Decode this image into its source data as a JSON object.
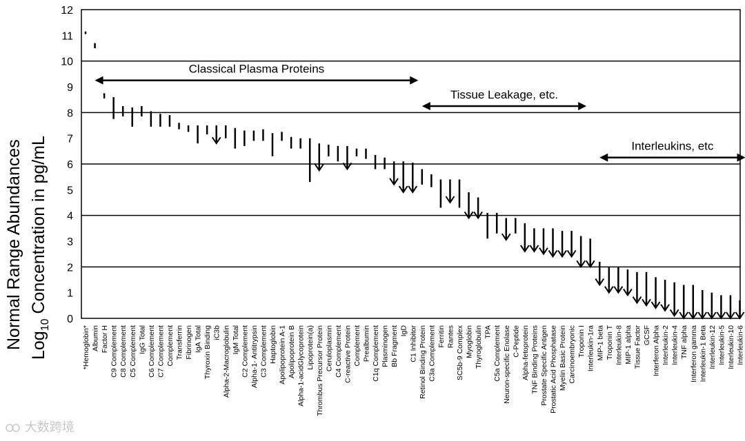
{
  "chart_data": {
    "type": "range",
    "title": "",
    "ylabel": {
      "line1": "Normal Range Abundances",
      "line2_prefix": "Log",
      "line2_sub": "10",
      "line2_suffix": " Concentration in pg/mL"
    },
    "ylim": [
      0,
      12
    ],
    "yticks": [
      0,
      1,
      2,
      3,
      4,
      5,
      6,
      7,
      8,
      9,
      10,
      11,
      12
    ],
    "gridlines": [
      2,
      4,
      6,
      8,
      10
    ],
    "annotations": [
      {
        "label": "Classical Plasma Proteins",
        "x_start": "Albumin",
        "x_end": "C1 Inhibitor",
        "y": 9.25
      },
      {
        "label": "Tissue Leakage, etc.",
        "x_start": "Retinol Binding Protein",
        "x_end": "Troponin I",
        "y": 8.25
      },
      {
        "label": "Interleukins, etc",
        "x_start": "MIP-1 beta",
        "x_end": "Interleukin-6",
        "y": 6.25
      }
    ],
    "series": [
      {
        "name": "*Hemoglobin*",
        "low": 11.05,
        "high": 11.15,
        "arrow": false
      },
      {
        "name": "Albumin",
        "low": 10.5,
        "high": 10.7,
        "arrow": false
      },
      {
        "name": "Factor H",
        "low": 8.55,
        "high": 8.75,
        "arrow": false
      },
      {
        "name": "C9 Complement",
        "low": 7.75,
        "high": 8.6,
        "arrow": false
      },
      {
        "name": "C8 Complement",
        "low": 7.85,
        "high": 8.25,
        "arrow": false
      },
      {
        "name": "C5 Complement",
        "low": 7.45,
        "high": 8.2,
        "arrow": false
      },
      {
        "name": "IgG Total",
        "low": 7.85,
        "high": 8.25,
        "arrow": false
      },
      {
        "name": "C6 Complement",
        "low": 7.45,
        "high": 8.05,
        "arrow": false
      },
      {
        "name": "C7 Complement",
        "low": 7.45,
        "high": 7.95,
        "arrow": false
      },
      {
        "name": "Complement",
        "low": 7.45,
        "high": 7.9,
        "arrow": false
      },
      {
        "name": "Transferrin",
        "low": 7.35,
        "high": 7.6,
        "arrow": false
      },
      {
        "name": "Fibrinogen",
        "low": 7.25,
        "high": 7.5,
        "arrow": false
      },
      {
        "name": "IgA Total",
        "low": 6.8,
        "high": 7.5,
        "arrow": false
      },
      {
        "name": "Thyroxin Binding",
        "low": 7.15,
        "high": 7.5,
        "arrow": false
      },
      {
        "name": "iC3b",
        "low": 6.8,
        "high": 7.5,
        "arrow": true
      },
      {
        "name": "Alpha-2-Macroglobulin",
        "low": 7.0,
        "high": 7.5,
        "arrow": false
      },
      {
        "name": "IgM Total",
        "low": 6.6,
        "high": 7.4,
        "arrow": false
      },
      {
        "name": "C2 Complement",
        "low": 6.7,
        "high": 7.3,
        "arrow": false
      },
      {
        "name": "Alpha-1- Antitrypsin",
        "low": 6.9,
        "high": 7.3,
        "arrow": false
      },
      {
        "name": "C3 Complement",
        "low": 6.9,
        "high": 7.35,
        "arrow": false
      },
      {
        "name": "Haptoglobin",
        "low": 6.3,
        "high": 7.2,
        "arrow": false
      },
      {
        "name": "Apolipoprotein A-1",
        "low": 6.9,
        "high": 7.25,
        "arrow": false
      },
      {
        "name": "Apolipoprotein B",
        "low": 6.6,
        "high": 7.05,
        "arrow": false
      },
      {
        "name": "Alpha-1-acidGlycoprotein",
        "low": 6.6,
        "high": 7.0,
        "arrow": false
      },
      {
        "name": "Lipoprotein(a)",
        "low": 5.3,
        "high": 7.0,
        "arrow": false
      },
      {
        "name": "Thrombus Precursor Protein",
        "low": 5.75,
        "high": 6.8,
        "arrow": true
      },
      {
        "name": "Ceruloplasmin",
        "low": 6.3,
        "high": 6.75,
        "arrow": false
      },
      {
        "name": "C4 Complement",
        "low": 6.1,
        "high": 6.7,
        "arrow": false
      },
      {
        "name": "C-reactive Protein",
        "low": 5.8,
        "high": 6.7,
        "arrow": true
      },
      {
        "name": "Complement",
        "low": 6.3,
        "high": 6.6,
        "arrow": false
      },
      {
        "name": "Prealbumin",
        "low": 6.2,
        "high": 6.6,
        "arrow": false
      },
      {
        "name": "C1q Complement",
        "low": 5.8,
        "high": 6.35,
        "arrow": false
      },
      {
        "name": "Plasminogen",
        "low": 5.8,
        "high": 6.25,
        "arrow": false
      },
      {
        "name": "Bb Fragment",
        "low": 5.2,
        "high": 6.1,
        "arrow": true
      },
      {
        "name": "IgD",
        "low": 4.9,
        "high": 6.1,
        "arrow": true
      },
      {
        "name": "C1 Inhibitor",
        "low": 4.9,
        "high": 6.05,
        "arrow": true
      },
      {
        "name": "Retinol Binding Protein",
        "low": 5.2,
        "high": 5.8,
        "arrow": false
      },
      {
        "name": "C3a Complement",
        "low": 5.1,
        "high": 5.6,
        "arrow": false
      },
      {
        "name": "Ferritin",
        "low": 4.3,
        "high": 5.4,
        "arrow": false
      },
      {
        "name": "Rantes",
        "low": 4.5,
        "high": 5.4,
        "arrow": true
      },
      {
        "name": "SC5b-9 Complex",
        "low": 4.3,
        "high": 5.4,
        "arrow": false
      },
      {
        "name": "Myoglobin",
        "low": 3.9,
        "high": 4.9,
        "arrow": true
      },
      {
        "name": "Thyroglobulin",
        "low": 3.9,
        "high": 4.7,
        "arrow": true
      },
      {
        "name": "TPA",
        "low": 3.1,
        "high": 4.1,
        "arrow": false
      },
      {
        "name": "C5a Complement",
        "low": 3.3,
        "high": 4.1,
        "arrow": false
      },
      {
        "name": "Neuron-specific Enolase",
        "low": 3.05,
        "high": 3.9,
        "arrow": true
      },
      {
        "name": "C-Peptide",
        "low": 3.3,
        "high": 3.9,
        "arrow": false
      },
      {
        "name": "Alpha-fetoprotein",
        "low": 2.6,
        "high": 3.7,
        "arrow": true
      },
      {
        "name": "TNF Binding Proteins",
        "low": 2.6,
        "high": 3.5,
        "arrow": true
      },
      {
        "name": "Prostate Specific Antigen",
        "low": 2.5,
        "high": 3.5,
        "arrow": true
      },
      {
        "name": "Prostatic Acid Phosphatase",
        "low": 2.4,
        "high": 3.5,
        "arrow": true
      },
      {
        "name": "Myelin Basic Protein",
        "low": 2.4,
        "high": 3.4,
        "arrow": true
      },
      {
        "name": "Carcinoembryonic",
        "low": 2.4,
        "high": 3.4,
        "arrow": true
      },
      {
        "name": "Troponin I",
        "low": 2.0,
        "high": 3.2,
        "arrow": true
      },
      {
        "name": "Interleukin-1ra",
        "low": 2.0,
        "high": 3.1,
        "arrow": true
      },
      {
        "name": "MIP-1 beta",
        "low": 1.3,
        "high": 2.2,
        "arrow": true
      },
      {
        "name": "Troponin T",
        "low": 1.0,
        "high": 2.0,
        "arrow": true
      },
      {
        "name": "Interleukin-8",
        "low": 1.0,
        "high": 2.0,
        "arrow": true
      },
      {
        "name": "MIP-1 alpha",
        "low": 0.9,
        "high": 1.9,
        "arrow": true
      },
      {
        "name": "Tissue Factor",
        "low": 0.6,
        "high": 1.8,
        "arrow": true
      },
      {
        "name": "GCSF",
        "low": 0.5,
        "high": 1.8,
        "arrow": true
      },
      {
        "name": "Interferon Alpha",
        "low": 0.4,
        "high": 1.6,
        "arrow": true
      },
      {
        "name": "Interleukin-2",
        "low": 0.3,
        "high": 1.5,
        "arrow": true
      },
      {
        "name": "Interleukin-4",
        "low": 0.1,
        "high": 1.4,
        "arrow": true
      },
      {
        "name": "TNF alpha",
        "low": 0.0,
        "high": 1.3,
        "arrow": true
      },
      {
        "name": "Interferon gamma",
        "low": 0.0,
        "high": 1.3,
        "arrow": true
      },
      {
        "name": "Interleukin-1 Beta",
        "low": 0.0,
        "high": 1.1,
        "arrow": true
      },
      {
        "name": "Interleukin-12",
        "low": 0.0,
        "high": 1.0,
        "arrow": true
      },
      {
        "name": "Interleukin-5",
        "low": 0.0,
        "high": 0.9,
        "arrow": true
      },
      {
        "name": "Interleukin-10",
        "low": 0.0,
        "high": 0.9,
        "arrow": true
      },
      {
        "name": "Interleukin-6",
        "low": 0.0,
        "high": 0.7,
        "arrow": true
      }
    ]
  },
  "watermark": {
    "text": "大数跨境"
  }
}
